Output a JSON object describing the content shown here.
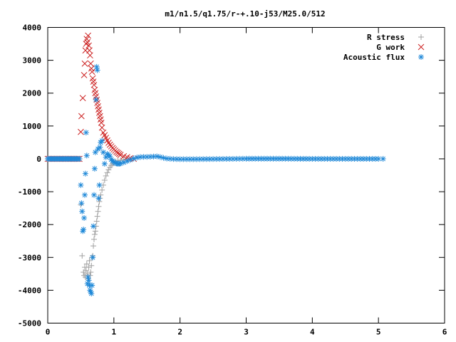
{
  "chart_data": {
    "type": "scatter",
    "title": "m1/n1.5/q1.75/r-+.10-j53/M25.0/512",
    "xlabel": "",
    "ylabel": "",
    "xlim": [
      0,
      6
    ],
    "ylim": [
      -5000,
      4000
    ],
    "xticks": [
      "0",
      "1",
      "2",
      "3",
      "4",
      "5",
      "6"
    ],
    "yticks": [
      "4000",
      "3000",
      "2000",
      "1000",
      "0",
      "-1000",
      "-2000",
      "-3000",
      "-4000",
      "-5000"
    ],
    "grid": false,
    "legend_position": "top-right",
    "series": [
      {
        "name": "R stress",
        "marker": "+",
        "color": "#a0a0a0",
        "points": [
          [
            0.5,
            -1400
          ],
          [
            0.52,
            -2950
          ],
          [
            0.54,
            -3450
          ],
          [
            0.55,
            -3550
          ],
          [
            0.56,
            -3300
          ],
          [
            0.57,
            -3600
          ],
          [
            0.58,
            -3400
          ],
          [
            0.59,
            -3200
          ],
          [
            0.6,
            -3500
          ],
          [
            0.61,
            -3650
          ],
          [
            0.62,
            -3300
          ],
          [
            0.63,
            -3100
          ],
          [
            0.64,
            -3550
          ],
          [
            0.65,
            -3450
          ],
          [
            0.66,
            -3250
          ],
          [
            0.67,
            -3000
          ],
          [
            0.68,
            -2950
          ],
          [
            0.69,
            -2650
          ],
          [
            0.7,
            -2450
          ],
          [
            0.71,
            -2300
          ],
          [
            0.72,
            -2200
          ],
          [
            0.73,
            -2050
          ],
          [
            0.74,
            -1900
          ],
          [
            0.75,
            -1750
          ],
          [
            0.76,
            -1600
          ],
          [
            0.77,
            -1450
          ],
          [
            0.78,
            -1300
          ],
          [
            0.79,
            -1200
          ],
          [
            0.8,
            -1100
          ],
          [
            0.82,
            -950
          ],
          [
            0.84,
            -800
          ],
          [
            0.86,
            -650
          ],
          [
            0.88,
            -520
          ],
          [
            0.9,
            -420
          ],
          [
            0.92,
            -330
          ],
          [
            0.94,
            -260
          ],
          [
            0.96,
            -200
          ],
          [
            0.98,
            -150
          ],
          [
            1.0,
            -110
          ],
          [
            1.03,
            -80
          ],
          [
            1.06,
            -60
          ],
          [
            1.1,
            -40
          ],
          [
            1.15,
            -25
          ],
          [
            1.2,
            -15
          ]
        ]
      },
      {
        "name": "G work",
        "marker": "x",
        "color": "#cc2222",
        "points": [
          [
            0.5,
            820
          ],
          [
            0.51,
            1300
          ],
          [
            0.53,
            1850
          ],
          [
            0.55,
            2550
          ],
          [
            0.56,
            2900
          ],
          [
            0.57,
            3300
          ],
          [
            0.58,
            3500
          ],
          [
            0.59,
            3650
          ],
          [
            0.6,
            3550
          ],
          [
            0.61,
            3750
          ],
          [
            0.62,
            3450
          ],
          [
            0.63,
            3300
          ],
          [
            0.64,
            3150
          ],
          [
            0.65,
            2900
          ],
          [
            0.66,
            2750
          ],
          [
            0.67,
            2650
          ],
          [
            0.68,
            2450
          ],
          [
            0.69,
            2350
          ],
          [
            0.7,
            2250
          ],
          [
            0.71,
            2100
          ],
          [
            0.72,
            2000
          ],
          [
            0.73,
            1900
          ],
          [
            0.74,
            1800
          ],
          [
            0.75,
            1700
          ],
          [
            0.76,
            1600
          ],
          [
            0.77,
            1500
          ],
          [
            0.78,
            1400
          ],
          [
            0.79,
            1300
          ],
          [
            0.8,
            1200
          ],
          [
            0.81,
            1100
          ],
          [
            0.82,
            950
          ],
          [
            0.84,
            800
          ],
          [
            0.86,
            720
          ],
          [
            0.88,
            640
          ],
          [
            0.9,
            560
          ],
          [
            0.92,
            490
          ],
          [
            0.94,
            430
          ],
          [
            0.96,
            380
          ],
          [
            0.98,
            330
          ],
          [
            1.0,
            290
          ],
          [
            1.02,
            250
          ],
          [
            1.04,
            210
          ],
          [
            1.06,
            180
          ],
          [
            1.08,
            150
          ],
          [
            1.1,
            120
          ],
          [
            1.15,
            80
          ],
          [
            1.2,
            50
          ],
          [
            1.25,
            20
          ],
          [
            1.3,
            0
          ]
        ]
      },
      {
        "name": "Acoustic flux",
        "marker": "*",
        "color": "#1e88d8",
        "points": [
          [
            0.5,
            -800
          ],
          [
            0.51,
            -1350
          ],
          [
            0.52,
            -1600
          ],
          [
            0.53,
            -2200
          ],
          [
            0.54,
            -2150
          ],
          [
            0.55,
            -1800
          ],
          [
            0.56,
            -1100
          ],
          [
            0.57,
            -450
          ],
          [
            0.58,
            800
          ],
          [
            0.59,
            100
          ],
          [
            0.6,
            -3800
          ],
          [
            0.61,
            -3600
          ],
          [
            0.62,
            -3700
          ],
          [
            0.63,
            -3850
          ],
          [
            0.64,
            -4000
          ],
          [
            0.65,
            -4050
          ],
          [
            0.66,
            -4100
          ],
          [
            0.67,
            -3850
          ],
          [
            0.68,
            -3000
          ],
          [
            0.69,
            -2050
          ],
          [
            0.7,
            -1100
          ],
          [
            0.71,
            -300
          ],
          [
            0.72,
            200
          ],
          [
            0.73,
            1800
          ],
          [
            0.74,
            2800
          ],
          [
            0.75,
            2700
          ],
          [
            0.76,
            300
          ],
          [
            0.77,
            -1200
          ],
          [
            0.78,
            -800
          ],
          [
            0.79,
            350
          ],
          [
            0.8,
            500
          ],
          [
            0.82,
            550
          ],
          [
            0.84,
            200
          ],
          [
            0.86,
            -150
          ],
          [
            0.88,
            50
          ],
          [
            0.9,
            150
          ],
          [
            0.92,
            120
          ],
          [
            0.94,
            80
          ],
          [
            0.96,
            -20
          ],
          [
            0.98,
            -60
          ],
          [
            1.0,
            -100
          ],
          [
            1.02,
            -120
          ],
          [
            1.04,
            -140
          ],
          [
            1.06,
            -150
          ],
          [
            1.08,
            -150
          ],
          [
            1.1,
            -140
          ],
          [
            1.15,
            -110
          ],
          [
            1.2,
            -70
          ],
          [
            1.25,
            -30
          ],
          [
            1.3,
            10
          ],
          [
            1.35,
            40
          ],
          [
            1.4,
            55
          ],
          [
            1.45,
            60
          ],
          [
            1.5,
            60
          ],
          [
            1.55,
            65
          ],
          [
            1.6,
            70
          ],
          [
            1.65,
            75
          ],
          [
            1.7,
            55
          ],
          [
            1.75,
            30
          ],
          [
            1.8,
            10
          ],
          [
            1.9,
            -5
          ],
          [
            2.0,
            -10
          ],
          [
            2.2,
            -10
          ],
          [
            2.5,
            -5
          ],
          [
            2.8,
            0
          ],
          [
            3.0,
            5
          ],
          [
            3.5,
            5
          ],
          [
            4.0,
            0
          ],
          [
            4.5,
            0
          ],
          [
            5.0,
            0
          ],
          [
            5.07,
            0
          ]
        ]
      }
    ]
  }
}
